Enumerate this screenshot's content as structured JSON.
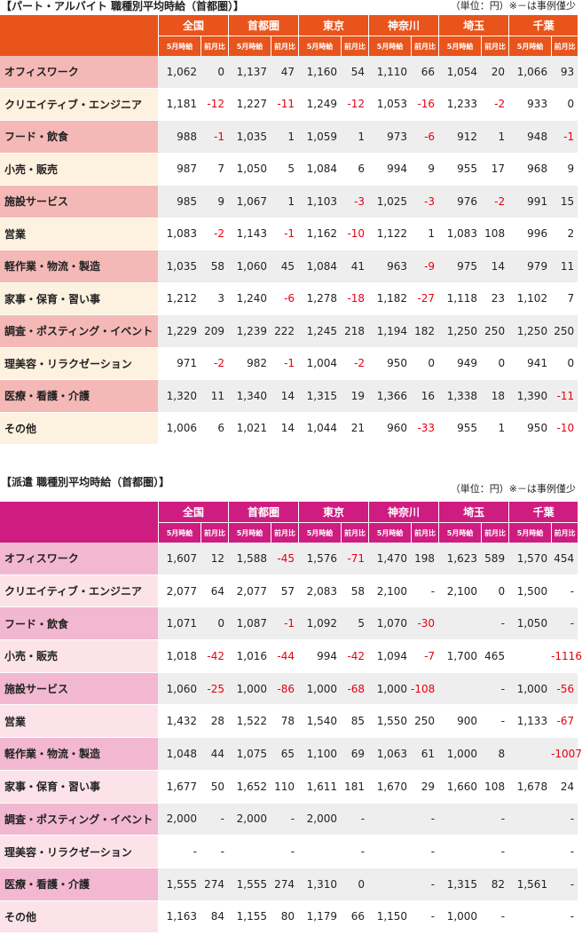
{
  "colors": {
    "part_header": "#e8541c",
    "haken_header": "#cf1c80",
    "negative": "#e60012"
  },
  "part": {
    "title": "【パート・アルバイト 職種別平均時給（首都圏）】",
    "unit_note": "（単位：円）※－は事例僅少",
    "regions": [
      "全国",
      "首都圏",
      "東京",
      "神奈川",
      "埼玉",
      "千葉"
    ],
    "sub_headers": [
      "5月時給",
      "前月比"
    ],
    "rows": [
      {
        "category": "オフィスワーク",
        "values": [
          "1,062",
          "0",
          "1,137",
          "47",
          "1,160",
          "54",
          "1,110",
          "66",
          "1,054",
          "20",
          "1,066",
          "93"
        ]
      },
      {
        "category": "クリエイティブ・エンジニア",
        "values": [
          "1,181",
          "-12",
          "1,227",
          "-11",
          "1,249",
          "-12",
          "1,053",
          "-16",
          "1,233",
          "-2",
          "933",
          "0"
        ]
      },
      {
        "category": "フード・飲食",
        "values": [
          "988",
          "-1",
          "1,035",
          "1",
          "1,059",
          "1",
          "973",
          "-6",
          "912",
          "1",
          "948",
          "-1"
        ]
      },
      {
        "category": "小売・販売",
        "values": [
          "987",
          "7",
          "1,050",
          "5",
          "1,084",
          "6",
          "994",
          "9",
          "955",
          "17",
          "968",
          "9"
        ]
      },
      {
        "category": "施設サービス",
        "values": [
          "985",
          "9",
          "1,067",
          "1",
          "1,103",
          "-3",
          "1,025",
          "-3",
          "976",
          "-2",
          "991",
          "15"
        ]
      },
      {
        "category": "営業",
        "values": [
          "1,083",
          "-2",
          "1,143",
          "-1",
          "1,162",
          "-10",
          "1,122",
          "1",
          "1,083",
          "108",
          "996",
          "2"
        ]
      },
      {
        "category": "軽作業・物流・製造",
        "values": [
          "1,035",
          "58",
          "1,060",
          "45",
          "1,084",
          "41",
          "963",
          "-9",
          "975",
          "14",
          "979",
          "11"
        ]
      },
      {
        "category": "家事・保育・習い事",
        "values": [
          "1,212",
          "3",
          "1,240",
          "-6",
          "1,278",
          "-18",
          "1,182",
          "-27",
          "1,118",
          "23",
          "1,102",
          "7"
        ]
      },
      {
        "category": "調査・ポスティング・イベント",
        "values": [
          "1,229",
          "209",
          "1,239",
          "222",
          "1,245",
          "218",
          "1,194",
          "182",
          "1,250",
          "250",
          "1,250",
          "250"
        ]
      },
      {
        "category": "理美容・リラクゼーション",
        "values": [
          "971",
          "-2",
          "982",
          "-1",
          "1,004",
          "-2",
          "950",
          "0",
          "949",
          "0",
          "941",
          "0"
        ]
      },
      {
        "category": "医療・看護・介護",
        "values": [
          "1,320",
          "11",
          "1,340",
          "14",
          "1,315",
          "19",
          "1,366",
          "16",
          "1,338",
          "18",
          "1,390",
          "-11"
        ]
      },
      {
        "category": "その他",
        "values": [
          "1,006",
          "6",
          "1,021",
          "14",
          "1,044",
          "21",
          "960",
          "-33",
          "955",
          "1",
          "950",
          "-10"
        ]
      }
    ]
  },
  "haken": {
    "title": "【派遣 職種別平均時給（首都圏）】",
    "unit_note": "（単位：円）※－は事例僅少",
    "regions": [
      "全国",
      "首都圏",
      "東京",
      "神奈川",
      "埼玉",
      "千葉"
    ],
    "sub_headers": [
      "5月時給",
      "前月比"
    ],
    "rows": [
      {
        "category": "オフィスワーク",
        "values": [
          "1,607",
          "12",
          "1,588",
          "-45",
          "1,576",
          "-71",
          "1,470",
          "198",
          "1,623",
          "589",
          "1,570",
          "454"
        ]
      },
      {
        "category": "クリエイティブ・エンジニア",
        "values": [
          "2,077",
          "64",
          "2,077",
          "57",
          "2,083",
          "58",
          "2,100",
          "-",
          "2,100",
          "0",
          "1,500",
          "-"
        ]
      },
      {
        "category": "フード・飲食",
        "values": [
          "1,071",
          "0",
          "1,087",
          "-1",
          "1,092",
          "5",
          "1,070",
          "-30",
          "",
          "-",
          "1,050",
          "-"
        ]
      },
      {
        "category": "小売・販売",
        "values": [
          "1,018",
          "-42",
          "1,016",
          "-44",
          "994",
          "-42",
          "1,094",
          "-7",
          "1,700",
          "465",
          "",
          "-1116"
        ]
      },
      {
        "category": "施設サービス",
        "values": [
          "1,060",
          "-25",
          "1,000",
          "-86",
          "1,000",
          "-68",
          "1,000",
          "-108",
          "",
          "-",
          "1,000",
          "-56"
        ]
      },
      {
        "category": "営業",
        "values": [
          "1,432",
          "28",
          "1,522",
          "78",
          "1,540",
          "85",
          "1,550",
          "250",
          "900",
          "-",
          "1,133",
          "-67"
        ]
      },
      {
        "category": "軽作業・物流・製造",
        "values": [
          "1,048",
          "44",
          "1,075",
          "65",
          "1,100",
          "69",
          "1,063",
          "61",
          "1,000",
          "8",
          "",
          "-1007"
        ]
      },
      {
        "category": "家事・保育・習い事",
        "values": [
          "1,677",
          "50",
          "1,652",
          "110",
          "1,611",
          "181",
          "1,670",
          "29",
          "1,660",
          "108",
          "1,678",
          "24"
        ]
      },
      {
        "category": "調査・ポスティング・イベント",
        "values": [
          "2,000",
          "-",
          "2,000",
          "-",
          "2,000",
          "-",
          "",
          "-",
          "",
          "-",
          "",
          "-"
        ]
      },
      {
        "category": "理美容・リラクゼーション",
        "values": [
          "-",
          "-",
          "",
          "-",
          "",
          "-",
          "",
          "-",
          "",
          "-",
          "",
          "-"
        ]
      },
      {
        "category": "医療・看護・介護",
        "values": [
          "1,555",
          "274",
          "1,555",
          "274",
          "1,310",
          "0",
          "",
          "-",
          "1,315",
          "82",
          "1,561",
          "-"
        ]
      },
      {
        "category": "その他",
        "values": [
          "1,163",
          "84",
          "1,155",
          "80",
          "1,179",
          "66",
          "1,150",
          "-",
          "1,000",
          "-",
          "",
          "-"
        ]
      }
    ]
  }
}
